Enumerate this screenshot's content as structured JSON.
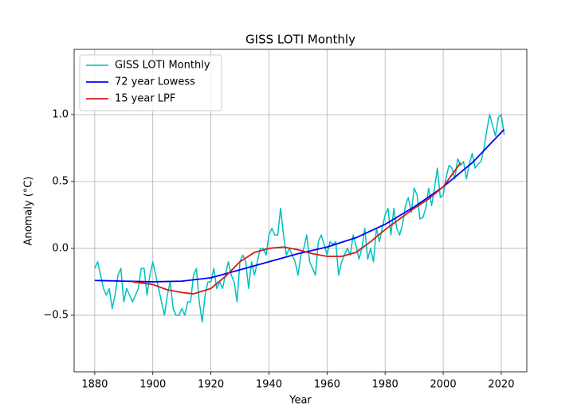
{
  "chart_data": {
    "type": "line",
    "title": "GISS LOTI Monthly",
    "x_label": "Year",
    "y_label": "Anomaly (°C)",
    "xlim": [
      1872.9,
      2028.8
    ],
    "ylim": [
      -0.923,
      1.488
    ],
    "xticks": [
      1880,
      1900,
      1920,
      1940,
      1960,
      1980,
      2000,
      2020
    ],
    "yticks": [
      {
        "value": -0.5,
        "label": "−0.5"
      },
      {
        "value": 0.0,
        "label": "0.0"
      },
      {
        "value": 0.5,
        "label": "0.5"
      },
      {
        "value": 1.0,
        "label": "1.0"
      }
    ],
    "grid": true,
    "legend": "upper left",
    "series": [
      {
        "name": "GISS LOTI Monthly",
        "color": "#00bfbf",
        "width": 1.5,
        "x": [
          1880,
          1881,
          1882,
          1883,
          1884,
          1885,
          1886,
          1887,
          1888,
          1889,
          1890,
          1891,
          1892,
          1893,
          1894,
          1895,
          1896,
          1897,
          1898,
          1899,
          1900,
          1901,
          1902,
          1903,
          1904,
          1905,
          1906,
          1907,
          1908,
          1909,
          1910,
          1911,
          1912,
          1913,
          1914,
          1915,
          1916,
          1917,
          1918,
          1919,
          1920,
          1921,
          1922,
          1923,
          1924,
          1925,
          1926,
          1927,
          1928,
          1929,
          1930,
          1931,
          1932,
          1933,
          1934,
          1935,
          1936,
          1937,
          1938,
          1939,
          1940,
          1941,
          1942,
          1943,
          1944,
          1945,
          1946,
          1947,
          1948,
          1949,
          1950,
          1951,
          1952,
          1953,
          1954,
          1955,
          1956,
          1957,
          1958,
          1959,
          1960,
          1961,
          1962,
          1963,
          1964,
          1965,
          1966,
          1967,
          1968,
          1969,
          1970,
          1971,
          1972,
          1973,
          1974,
          1975,
          1976,
          1977,
          1978,
          1979,
          1980,
          1981,
          1982,
          1983,
          1984,
          1985,
          1986,
          1987,
          1988,
          1989,
          1990,
          1991,
          1992,
          1993,
          1994,
          1995,
          1996,
          1997,
          1998,
          1999,
          2000,
          2001,
          2002,
          2003,
          2004,
          2005,
          2006,
          2007,
          2008,
          2009,
          2010,
          2011,
          2012,
          2013,
          2014,
          2015,
          2016,
          2017,
          2018,
          2019,
          2020,
          2021
        ],
        "values": [
          -0.15,
          -0.1,
          -0.2,
          -0.3,
          -0.35,
          -0.3,
          -0.45,
          -0.35,
          -0.2,
          -0.15,
          -0.4,
          -0.3,
          -0.35,
          -0.4,
          -0.35,
          -0.3,
          -0.15,
          -0.15,
          -0.35,
          -0.2,
          -0.1,
          -0.2,
          -0.3,
          -0.4,
          -0.5,
          -0.35,
          -0.25,
          -0.45,
          -0.5,
          -0.5,
          -0.45,
          -0.5,
          -0.4,
          -0.4,
          -0.2,
          -0.15,
          -0.4,
          -0.55,
          -0.35,
          -0.25,
          -0.25,
          -0.15,
          -0.3,
          -0.25,
          -0.3,
          -0.2,
          -0.1,
          -0.2,
          -0.25,
          -0.4,
          -0.1,
          -0.05,
          -0.1,
          -0.3,
          -0.1,
          -0.2,
          -0.1,
          0.0,
          0.0,
          -0.05,
          0.1,
          0.15,
          0.1,
          0.1,
          0.3,
          0.1,
          -0.05,
          0.0,
          -0.05,
          -0.1,
          -0.2,
          -0.05,
          0.0,
          0.1,
          -0.1,
          -0.15,
          -0.2,
          0.05,
          0.1,
          0.03,
          -0.05,
          0.05,
          0.03,
          0.05,
          -0.2,
          -0.1,
          -0.05,
          0.0,
          -0.05,
          0.1,
          0.02,
          -0.08,
          0.0,
          0.15,
          -0.08,
          0.0,
          -0.1,
          0.15,
          0.05,
          0.15,
          0.25,
          0.3,
          0.1,
          0.3,
          0.15,
          0.1,
          0.18,
          0.32,
          0.38,
          0.27,
          0.45,
          0.4,
          0.22,
          0.23,
          0.3,
          0.45,
          0.32,
          0.45,
          0.6,
          0.38,
          0.4,
          0.53,
          0.62,
          0.6,
          0.52,
          0.67,
          0.62,
          0.65,
          0.52,
          0.63,
          0.71,
          0.6,
          0.63,
          0.65,
          0.74,
          0.88,
          1.0,
          0.92,
          0.84,
          0.98,
          1.0,
          0.85
        ]
      },
      {
        "name": "72 year Lowess",
        "color": "#0000ff",
        "width": 1.8,
        "x": [
          1880,
          1890,
          1900,
          1910,
          1920,
          1930,
          1940,
          1950,
          1960,
          1970,
          1980,
          1990,
          2000,
          2010,
          2021
        ],
        "values": [
          -0.24,
          -0.245,
          -0.25,
          -0.245,
          -0.22,
          -0.16,
          -0.1,
          -0.04,
          0.01,
          0.08,
          0.18,
          0.31,
          0.46,
          0.64,
          0.89
        ]
      },
      {
        "name": "15 year LPF",
        "color": "#d01c1c",
        "width": 1.8,
        "x": [
          1893,
          1900,
          1905,
          1910,
          1914,
          1920,
          1925,
          1930,
          1935,
          1940,
          1945,
          1950,
          1955,
          1960,
          1965,
          1970,
          1975,
          1980,
          1985,
          1990,
          1995,
          2000,
          2006
        ],
        "values": [
          -0.25,
          -0.27,
          -0.31,
          -0.33,
          -0.34,
          -0.3,
          -0.21,
          -0.1,
          -0.03,
          0.0,
          0.01,
          -0.01,
          -0.04,
          -0.06,
          -0.06,
          -0.03,
          0.05,
          0.14,
          0.22,
          0.3,
          0.37,
          0.46,
          0.64
        ]
      }
    ]
  }
}
